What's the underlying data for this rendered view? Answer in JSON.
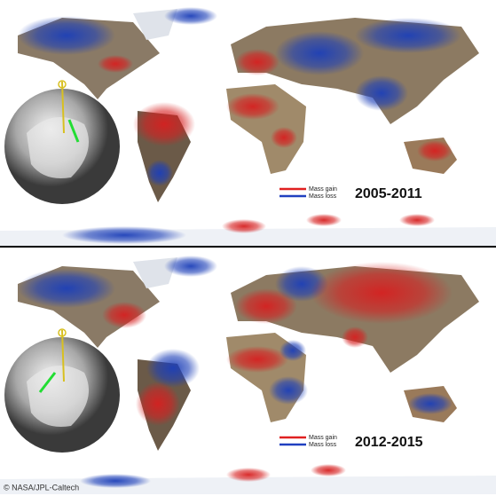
{
  "panels": [
    {
      "legend": {
        "gain": "Mass gain",
        "loss": "Mass loss"
      },
      "period": "2005-2011"
    },
    {
      "legend": {
        "gain": "Mass gain",
        "loss": "Mass loss"
      },
      "period": "2012-2015"
    }
  ],
  "credit": "© NASA/JPL-Caltech"
}
